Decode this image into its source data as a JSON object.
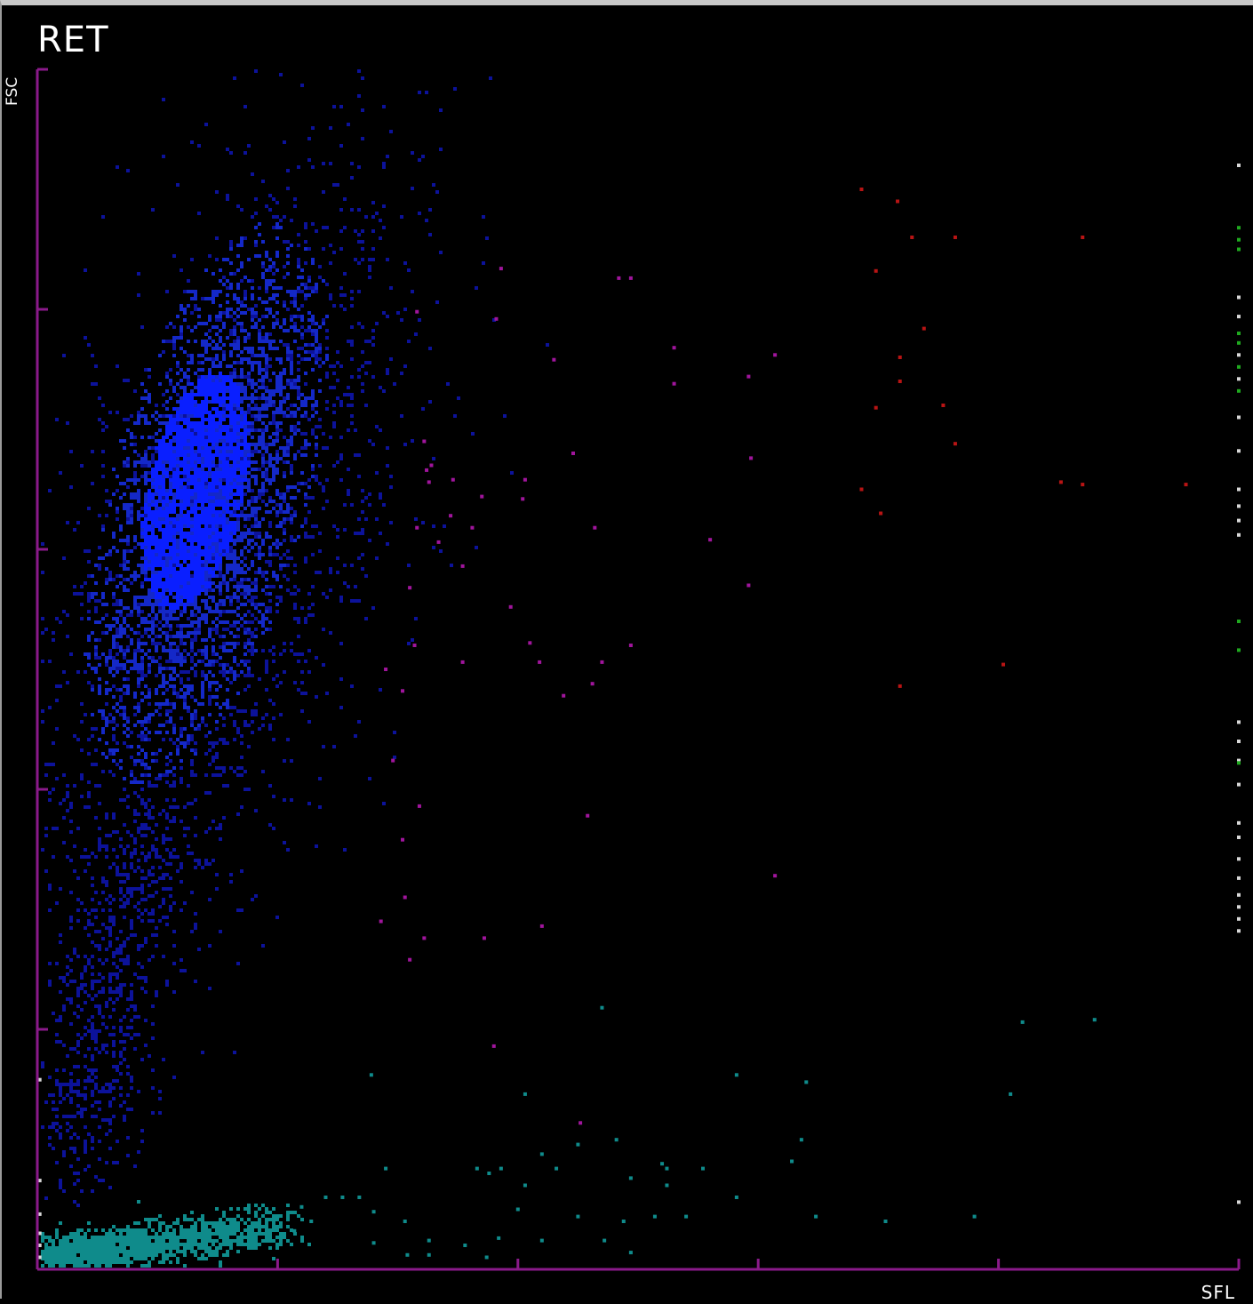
{
  "chart_data": {
    "type": "scatter",
    "title": "RET",
    "xlabel": "SFL",
    "ylabel": "FSC",
    "xlim": [
      0,
      5
    ],
    "ylim": [
      0,
      5
    ],
    "grid": false,
    "colors": {
      "axis": "#8a1a8a",
      "rbc_dense": "#0a1fff",
      "rbc_mid": "#1428c8",
      "rbc_sparse": "#0c129a",
      "plt": "#0f8b8b",
      "ret": "#a0159c",
      "hfr": "#b81414",
      "edge_white": "#d8d8d8",
      "edge_green": "#1fa81f"
    },
    "populations": [
      {
        "name": "rbc-core",
        "color_key": "rbc_dense",
        "shape": "ellipse",
        "center": [
          0.65,
          3.25
        ],
        "radius": [
          0.2,
          0.5
        ],
        "rotation_deg": -12
      },
      {
        "name": "rbc-cloud",
        "color_key": "rbc_mid",
        "shape": "ellipse",
        "center": [
          0.7,
          3.2
        ],
        "radius": [
          0.38,
          1.1
        ],
        "rotation_deg": -15
      },
      {
        "name": "rbc-halo",
        "color_key": "rbc_sparse",
        "shape": "ellipse",
        "center": [
          0.75,
          3.0
        ],
        "radius": [
          0.6,
          1.6
        ],
        "rotation_deg": -18
      },
      {
        "name": "rbc-tail",
        "color_key": "rbc_sparse",
        "shape": "band",
        "from": [
          0.45,
          1.9
        ],
        "to": [
          0.15,
          0.45
        ],
        "spread": 0.12
      },
      {
        "name": "plt-cluster",
        "color_key": "plt",
        "shape": "band",
        "from": [
          0.1,
          0.05
        ],
        "to": [
          1.0,
          0.18
        ],
        "spread": 0.06
      }
    ],
    "series": [
      {
        "color_key": "ret",
        "points": [
          [
            1.58,
            3.99
          ],
          [
            1.93,
            4.17
          ],
          [
            1.91,
            3.96
          ],
          [
            2.42,
            4.13
          ],
          [
            2.15,
            3.79
          ],
          [
            2.03,
            3.29
          ],
          [
            2.32,
            3.09
          ],
          [
            2.47,
            4.13
          ],
          [
            2.65,
            3.84
          ],
          [
            2.65,
            3.69
          ],
          [
            3.07,
            3.81
          ],
          [
            2.97,
            3.38
          ],
          [
            2.96,
            2.85
          ],
          [
            2.23,
            3.4
          ],
          [
            2.47,
            2.6
          ],
          [
            1.97,
            2.76
          ],
          [
            2.09,
            2.53
          ],
          [
            2.05,
            2.61
          ],
          [
            1.77,
            2.53
          ],
          [
            1.61,
            3.45
          ],
          [
            1.62,
            3.33
          ],
          [
            1.63,
            3.28
          ],
          [
            1.58,
            3.09
          ],
          [
            1.55,
            2.84
          ],
          [
            1.57,
            2.6
          ],
          [
            1.45,
            2.5
          ],
          [
            1.52,
            2.41
          ],
          [
            1.48,
            2.12
          ],
          [
            1.59,
            1.93
          ],
          [
            1.52,
            1.79
          ],
          [
            1.43,
            1.45
          ],
          [
            1.55,
            1.29
          ],
          [
            1.61,
            1.38
          ],
          [
            1.86,
            1.38
          ],
          [
            2.1,
            1.43
          ],
          [
            1.9,
            0.93
          ],
          [
            2.26,
            0.61
          ],
          [
            1.53,
            1.55
          ],
          [
            1.67,
            3.03
          ],
          [
            1.72,
            3.14
          ],
          [
            1.77,
            2.93
          ],
          [
            1.73,
            3.29
          ],
          [
            1.81,
            3.09
          ],
          [
            2.19,
            2.39
          ],
          [
            2.35,
            2.53
          ],
          [
            2.31,
            2.44
          ],
          [
            2.29,
            1.89
          ],
          [
            3.07,
            1.64
          ],
          [
            2.8,
            3.04
          ],
          [
            2.96,
            3.72
          ],
          [
            2.02,
            3.21
          ],
          [
            1.85,
            3.22
          ],
          [
            1.64,
            3.35
          ]
        ]
      },
      {
        "color_key": "hfr",
        "points": [
          [
            3.43,
            4.5
          ],
          [
            3.58,
            4.45
          ],
          [
            3.64,
            4.3
          ],
          [
            3.82,
            4.3
          ],
          [
            4.35,
            4.3
          ],
          [
            3.49,
            4.16
          ],
          [
            3.69,
            3.92
          ],
          [
            3.59,
            3.8
          ],
          [
            3.59,
            3.7
          ],
          [
            3.49,
            3.59
          ],
          [
            3.77,
            3.6
          ],
          [
            3.82,
            3.44
          ],
          [
            3.43,
            3.25
          ],
          [
            3.51,
            3.15
          ],
          [
            4.26,
            3.28
          ],
          [
            4.35,
            3.27
          ],
          [
            4.78,
            3.27
          ],
          [
            4.02,
            2.52
          ],
          [
            3.59,
            2.43
          ]
        ]
      },
      {
        "color_key": "plt",
        "points": [
          [
            2.35,
            1.09
          ],
          [
            4.1,
            1.03
          ],
          [
            4.4,
            1.04
          ],
          [
            1.39,
            0.81
          ],
          [
            2.03,
            0.73
          ],
          [
            2.91,
            0.81
          ],
          [
            3.2,
            0.78
          ],
          [
            4.05,
            0.73
          ],
          [
            2.25,
            0.52
          ],
          [
            2.41,
            0.54
          ],
          [
            3.18,
            0.54
          ],
          [
            3.14,
            0.45
          ],
          [
            2.6,
            0.44
          ],
          [
            2.1,
            0.48
          ],
          [
            2.16,
            0.42
          ],
          [
            2.47,
            0.38
          ],
          [
            2.62,
            0.42
          ],
          [
            2.77,
            0.42
          ],
          [
            1.83,
            0.42
          ],
          [
            1.88,
            0.4
          ],
          [
            1.93,
            0.42
          ],
          [
            1.45,
            0.42
          ],
          [
            2.03,
            0.35
          ],
          [
            2.62,
            0.35
          ],
          [
            2.91,
            0.3
          ],
          [
            2.0,
            0.25
          ],
          [
            2.25,
            0.22
          ],
          [
            2.44,
            0.2
          ],
          [
            2.57,
            0.22
          ],
          [
            2.7,
            0.22
          ],
          [
            3.24,
            0.22
          ],
          [
            3.53,
            0.2
          ],
          [
            3.9,
            0.22
          ],
          [
            2.36,
            0.12
          ],
          [
            2.47,
            0.07
          ],
          [
            2.1,
            0.12
          ],
          [
            1.92,
            0.13
          ],
          [
            1.53,
            0.2
          ],
          [
            1.63,
            0.12
          ],
          [
            1.78,
            0.1
          ],
          [
            1.4,
            0.11
          ],
          [
            1.54,
            0.06
          ],
          [
            1.63,
            0.06
          ],
          [
            1.87,
            0.05
          ],
          [
            1.27,
            0.3
          ],
          [
            1.4,
            0.24
          ],
          [
            1.1,
            0.26
          ],
          [
            1.2,
            0.3
          ],
          [
            1.34,
            0.3
          ],
          [
            1.0,
            0.22
          ],
          [
            1.14,
            0.2
          ],
          [
            1.07,
            0.16
          ]
        ]
      },
      {
        "color_key": "edge_white",
        "points": [
          [
            5.0,
            4.6
          ],
          [
            5.0,
            4.05
          ],
          [
            5.0,
            3.97
          ],
          [
            5.0,
            3.81
          ],
          [
            5.0,
            3.71
          ],
          [
            5.0,
            3.55
          ],
          [
            5.0,
            3.41
          ],
          [
            5.0,
            3.25
          ],
          [
            5.0,
            3.18
          ],
          [
            5.0,
            3.12
          ],
          [
            5.0,
            3.06
          ],
          [
            5.0,
            2.28
          ],
          [
            5.0,
            2.2
          ],
          [
            5.0,
            2.12
          ],
          [
            5.0,
            2.02
          ],
          [
            5.0,
            1.86
          ],
          [
            5.0,
            1.8
          ],
          [
            5.0,
            1.71
          ],
          [
            5.0,
            1.63
          ],
          [
            5.0,
            1.56
          ],
          [
            5.0,
            1.51
          ],
          [
            5.0,
            1.46
          ],
          [
            5.0,
            1.41
          ],
          [
            5.0,
            0.28
          ],
          [
            0.01,
            0.79
          ],
          [
            0.01,
            0.37
          ],
          [
            0.01,
            0.23
          ],
          [
            0.01,
            0.15
          ],
          [
            0.01,
            0.1
          ],
          [
            0.01,
            0.05
          ]
        ]
      },
      {
        "color_key": "edge_green",
        "points": [
          [
            5.0,
            4.34
          ],
          [
            5.0,
            4.29
          ],
          [
            5.0,
            4.25
          ],
          [
            5.0,
            3.9
          ],
          [
            5.0,
            3.86
          ],
          [
            5.0,
            3.76
          ],
          [
            5.0,
            3.66
          ],
          [
            5.0,
            2.7
          ],
          [
            5.0,
            2.58
          ],
          [
            5.0,
            2.11
          ]
        ]
      }
    ]
  }
}
